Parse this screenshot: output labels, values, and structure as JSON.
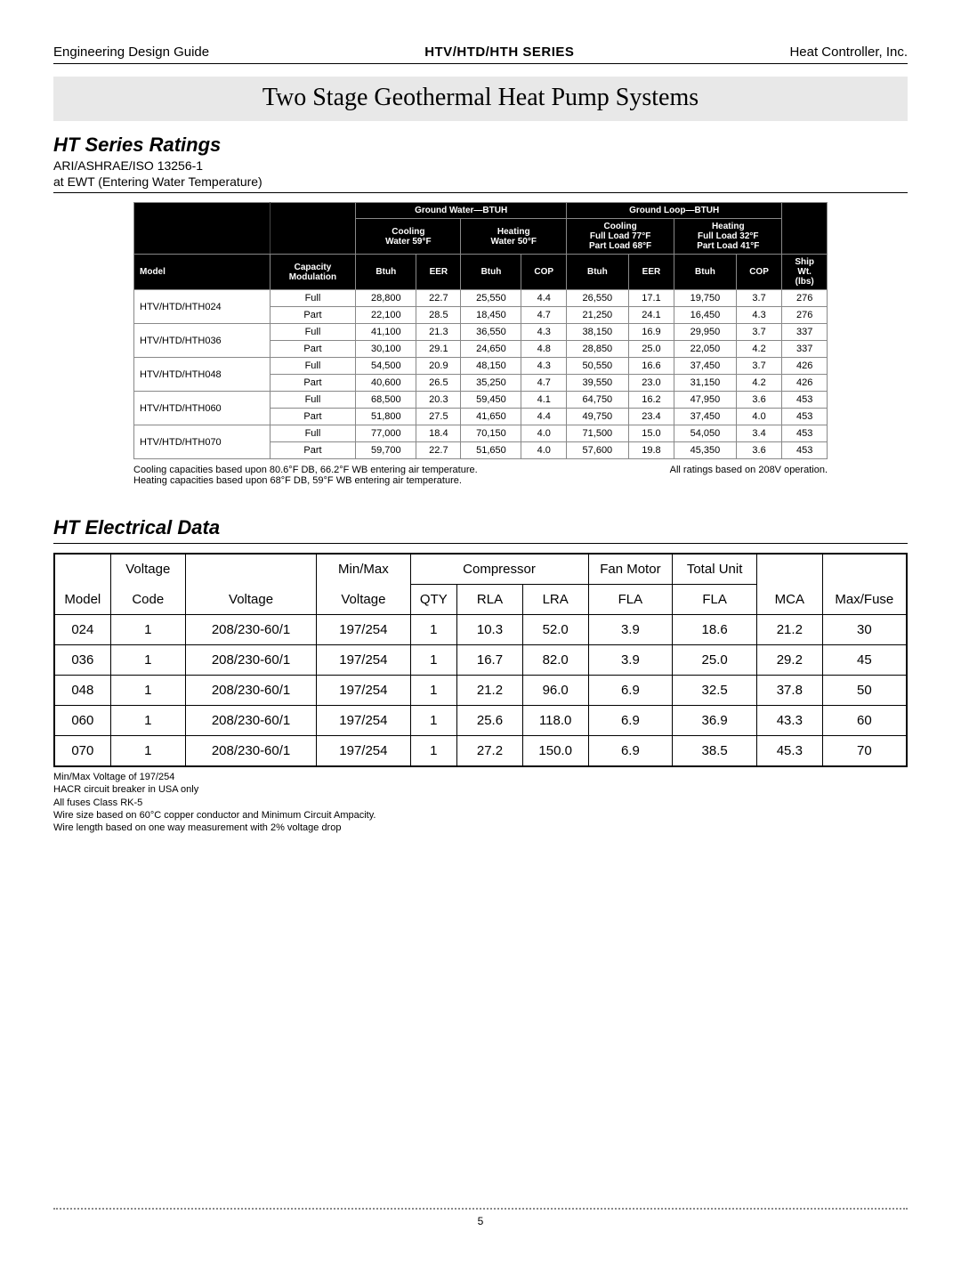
{
  "header": {
    "left": "Engineering Design Guide",
    "center": "HTV/HTD/HTH SERIES",
    "right": "Heat Controller, Inc."
  },
  "title": "Two Stage Geothermal Heat Pump Systems",
  "ratings": {
    "heading": "HT Series Ratings",
    "sub1": "ARI/ASHRAE/ISO 13256-1",
    "sub2": "at EWT (Entering Water Temperature)",
    "group_gw": "Ground  Water—BTUH",
    "group_gl": "Ground Loop—BTUH",
    "gw_cool": "Cooling",
    "gw_cool_sub": "Water  59°F",
    "gw_heat": "Heating",
    "gw_heat_sub": "Water 50°F",
    "gl_cool": "Cooling",
    "gl_cool_sub1": "Full Load 77°F",
    "gl_cool_sub2": "Part Load 68°F",
    "gl_heat": "Heating",
    "gl_heat_sub1": "Full Load 32°F",
    "gl_heat_sub2": "Part Load 41°F",
    "ship": "Ship",
    "wt": "Wt.",
    "lbs": "(lbs)",
    "capacity": "Capacity",
    "modulation": "Modulation",
    "model_h": "Model",
    "btuh": "Btuh",
    "eer": "EER",
    "cop": "COP",
    "rows": [
      {
        "model": "HTV/HTD/HTH024",
        "mod": "Full",
        "c1": "28,800",
        "c2": "22.7",
        "c3": "25,550",
        "c4": "4.4",
        "c5": "26,550",
        "c6": "17.1",
        "c7": "19,750",
        "c8": "3.7",
        "c9": "276"
      },
      {
        "model": "",
        "mod": "Part",
        "c1": "22,100",
        "c2": "28.5",
        "c3": "18,450",
        "c4": "4.7",
        "c5": "21,250",
        "c6": "24.1",
        "c7": "16,450",
        "c8": "4.3",
        "c9": "276"
      },
      {
        "model": "HTV/HTD/HTH036",
        "mod": "Full",
        "c1": "41,100",
        "c2": "21.3",
        "c3": "36,550",
        "c4": "4.3",
        "c5": "38,150",
        "c6": "16.9",
        "c7": "29,950",
        "c8": "3.7",
        "c9": "337"
      },
      {
        "model": "",
        "mod": "Part",
        "c1": "30,100",
        "c2": "29.1",
        "c3": "24,650",
        "c4": "4.8",
        "c5": "28,850",
        "c6": "25.0",
        "c7": "22,050",
        "c8": "4.2",
        "c9": "337"
      },
      {
        "model": "HTV/HTD/HTH048",
        "mod": "Full",
        "c1": "54,500",
        "c2": "20.9",
        "c3": "48,150",
        "c4": "4.3",
        "c5": "50,550",
        "c6": "16.6",
        "c7": "37,450",
        "c8": "3.7",
        "c9": "426"
      },
      {
        "model": "",
        "mod": "Part",
        "c1": "40,600",
        "c2": "26.5",
        "c3": "35,250",
        "c4": "4.7",
        "c5": "39,550",
        "c6": "23.0",
        "c7": "31,150",
        "c8": "4.2",
        "c9": "426"
      },
      {
        "model": "HTV/HTD/HTH060",
        "mod": "Full",
        "c1": "68,500",
        "c2": "20.3",
        "c3": "59,450",
        "c4": "4.1",
        "c5": "64,750",
        "c6": "16.2",
        "c7": "47,950",
        "c8": "3.6",
        "c9": "453"
      },
      {
        "model": "",
        "mod": "Part",
        "c1": "51,800",
        "c2": "27.5",
        "c3": "41,650",
        "c4": "4.4",
        "c5": "49,750",
        "c6": "23.4",
        "c7": "37,450",
        "c8": "4.0",
        "c9": "453"
      },
      {
        "model": "HTV/HTD/HTH070",
        "mod": "Full",
        "c1": "77,000",
        "c2": "18.4",
        "c3": "70,150",
        "c4": "4.0",
        "c5": "71,500",
        "c6": "15.0",
        "c7": "54,050",
        "c8": "3.4",
        "c9": "453"
      },
      {
        "model": "",
        "mod": "Part",
        "c1": "59,700",
        "c2": "22.7",
        "c3": "51,650",
        "c4": "4.0",
        "c5": "57,600",
        "c6": "19.8",
        "c7": "45,350",
        "c8": "3.6",
        "c9": "453"
      }
    ],
    "note_left1": "Cooling capacities based upon 80.6°F DB, 66.2°F WB entering air temperature.",
    "note_left2": "Heating capacities based upon 68°F DB, 59°F WB entering air temperature.",
    "note_right": "All ratings based on 208V operation."
  },
  "elec": {
    "heading": "HT Electrical Data",
    "h_model": "Model",
    "h_voltcode": "Voltage\nCode",
    "h_voltage": "Voltage",
    "h_minmax": "Min/Max\nVoltage",
    "h_comp": "Compressor",
    "h_qty": "QTY",
    "h_rla": "RLA",
    "h_lra": "LRA",
    "h_fan": "Fan Motor",
    "h_fla": "FLA",
    "h_total": "Total Unit",
    "h_mca": "MCA",
    "h_maxfuse": "Max/Fuse",
    "rows": [
      {
        "m": "024",
        "vc": "1",
        "v": "208/230-60/1",
        "mm": "197/254",
        "q": "1",
        "rla": "10.3",
        "lra": "52.0",
        "fan": "3.9",
        "tot": "18.6",
        "mca": "21.2",
        "mf": "30"
      },
      {
        "m": "036",
        "vc": "1",
        "v": "208/230-60/1",
        "mm": "197/254",
        "q": "1",
        "rla": "16.7",
        "lra": "82.0",
        "fan": "3.9",
        "tot": "25.0",
        "mca": "29.2",
        "mf": "45"
      },
      {
        "m": "048",
        "vc": "1",
        "v": "208/230-60/1",
        "mm": "197/254",
        "q": "1",
        "rla": "21.2",
        "lra": "96.0",
        "fan": "6.9",
        "tot": "32.5",
        "mca": "37.8",
        "mf": "50"
      },
      {
        "m": "060",
        "vc": "1",
        "v": "208/230-60/1",
        "mm": "197/254",
        "q": "1",
        "rla": "25.6",
        "lra": "118.0",
        "fan": "6.9",
        "tot": "36.9",
        "mca": "43.3",
        "mf": "60"
      },
      {
        "m": "070",
        "vc": "1",
        "v": "208/230-60/1",
        "mm": "197/254",
        "q": "1",
        "rla": "27.2",
        "lra": "150.0",
        "fan": "6.9",
        "tot": "38.5",
        "mca": "45.3",
        "mf": "70"
      }
    ],
    "n1": "Min/Max Voltage of 197/254",
    "n2": "HACR circuit breaker in USA only",
    "n3": "All fuses Class RK-5",
    "n4": "Wire size based on 60°C copper conductor and Minimum Circuit Ampacity.",
    "n5": "Wire length based on one way measurement with 2% voltage drop"
  },
  "page_number": "5"
}
